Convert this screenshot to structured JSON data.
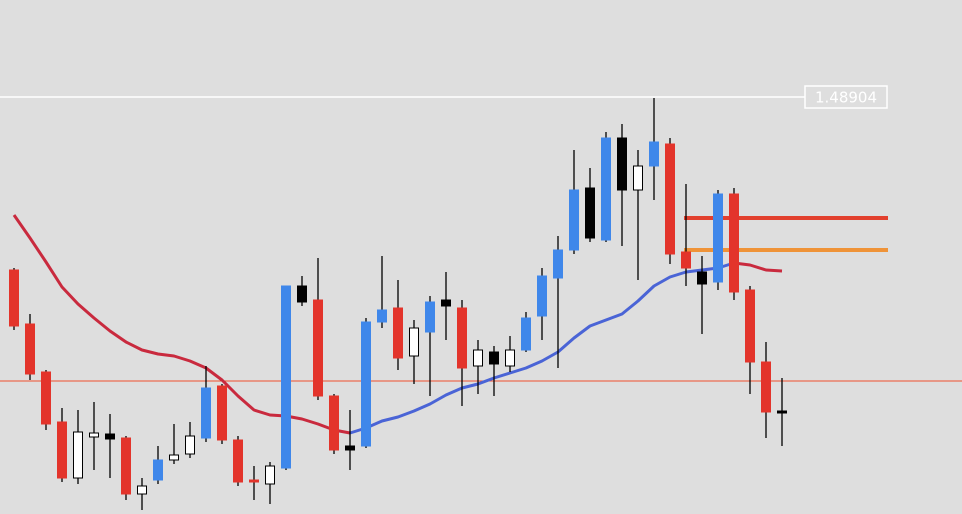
{
  "chart_data": {
    "type": "candlestick",
    "ylim": [
      1.46819,
      1.49389
    ],
    "open": [
      1.48039,
      1.47769,
      1.47529,
      1.47279,
      1.46999,
      1.47204,
      1.47219,
      1.47199,
      1.46919,
      1.46989,
      1.47089,
      1.47119,
      1.47199,
      1.47459,
      1.47189,
      1.46989,
      1.46969,
      1.47049,
      1.47959,
      1.47889,
      1.47409,
      1.47159,
      1.47159,
      1.47779,
      1.47849,
      1.47609,
      1.47729,
      1.47889,
      1.47849,
      1.47559,
      1.47629,
      1.47559,
      1.47639,
      1.47809,
      1.47999,
      1.48139,
      1.48449,
      1.48189,
      1.48699,
      1.48439,
      1.48559,
      1.48669,
      1.48129,
      1.48029,
      1.47979,
      1.48419,
      1.47939,
      1.47579,
      1.47334
    ],
    "high": [
      1.48049,
      1.47819,
      1.47539,
      1.47349,
      1.47339,
      1.47379,
      1.47319,
      1.47209,
      1.46999,
      1.47159,
      1.47269,
      1.47279,
      1.47559,
      1.47469,
      1.47209,
      1.47059,
      1.47079,
      1.47959,
      1.48009,
      1.48099,
      1.47419,
      1.47339,
      1.47799,
      1.48109,
      1.47989,
      1.47789,
      1.47909,
      1.48029,
      1.47889,
      1.47689,
      1.47659,
      1.47709,
      1.47829,
      1.48049,
      1.48209,
      1.48639,
      1.48549,
      1.48729,
      1.48769,
      1.48639,
      1.48899,
      1.48699,
      1.48469,
      1.48109,
      1.48439,
      1.48449,
      1.47959,
      1.47679,
      1.47499
    ],
    "low": [
      1.47739,
      1.47489,
      1.47239,
      1.46979,
      1.46969,
      1.47039,
      1.46999,
      1.46889,
      1.46839,
      1.46969,
      1.47069,
      1.47099,
      1.47179,
      1.47169,
      1.46959,
      1.46889,
      1.46869,
      1.47039,
      1.47859,
      1.47389,
      1.47119,
      1.47039,
      1.47149,
      1.47749,
      1.47539,
      1.47469,
      1.47409,
      1.47689,
      1.47359,
      1.47419,
      1.47409,
      1.47529,
      1.47629,
      1.47689,
      1.47549,
      1.48119,
      1.48179,
      1.48179,
      1.48159,
      1.47989,
      1.48389,
      1.48069,
      1.47959,
      1.47719,
      1.47939,
      1.47889,
      1.47419,
      1.47199,
      1.47159
    ],
    "close": [
      1.47759,
      1.47519,
      1.47269,
      1.46999,
      1.47229,
      1.47224,
      1.47194,
      1.46919,
      1.46959,
      1.47089,
      1.47114,
      1.47209,
      1.47449,
      1.47189,
      1.46979,
      1.46979,
      1.47059,
      1.47959,
      1.47879,
      1.47409,
      1.47139,
      1.47139,
      1.47779,
      1.47839,
      1.47599,
      1.47749,
      1.47879,
      1.47859,
      1.47549,
      1.47639,
      1.47569,
      1.47639,
      1.47799,
      1.48009,
      1.48139,
      1.48439,
      1.48199,
      1.48699,
      1.48439,
      1.48559,
      1.48679,
      1.48119,
      1.48049,
      1.47969,
      1.48419,
      1.47929,
      1.47579,
      1.47329,
      1.47329
    ],
    "candle_colors": [
      "#e3342b",
      "#e3342b",
      "#e3342b",
      "#e3342b",
      "#ffffff",
      "#ffffff",
      "#000000",
      "#e3342b",
      "#ffffff",
      "#3f87ea",
      "#ffffff",
      "#ffffff",
      "#3f87ea",
      "#e3342b",
      "#e3342b",
      "#e3342b",
      "#ffffff",
      "#3f87ea",
      "#000000",
      "#e3342b",
      "#e3342b",
      "#000000",
      "#3f87ea",
      "#3f87ea",
      "#e3342b",
      "#ffffff",
      "#3f87ea",
      "#000000",
      "#e3342b",
      "#ffffff",
      "#000000",
      "#ffffff",
      "#3f87ea",
      "#3f87ea",
      "#3f87ea",
      "#3f87ea",
      "#000000",
      "#3f87ea",
      "#000000",
      "#ffffff",
      "#3f87ea",
      "#e3342b",
      "#e3342b",
      "#000000",
      "#3f87ea",
      "#e3342b",
      "#e3342b",
      "#e3342b",
      "#000000"
    ],
    "series": [
      {
        "color": "#c92a3e",
        "values": [
          1.48314,
          1.48199,
          1.48079,
          1.47954,
          1.47869,
          1.47799,
          1.47734,
          1.47679,
          1.47639,
          1.47619,
          1.47609,
          1.47584,
          1.47549,
          1.47489,
          1.47409,
          1.47339,
          1.47314,
          1.47309,
          1.47294,
          1.47269,
          1.47239,
          1.47224,
          null,
          null,
          null,
          null,
          null,
          null,
          null,
          null,
          null,
          null,
          null,
          null,
          null,
          null,
          null,
          null,
          null,
          null,
          null,
          null,
          null,
          null,
          null,
          1.48074,
          1.48064,
          1.48039,
          1.48034
        ]
      },
      {
        "color": "#4a64d6",
        "values": [
          null,
          null,
          null,
          null,
          null,
          null,
          null,
          null,
          null,
          null,
          null,
          null,
          null,
          null,
          null,
          null,
          null,
          null,
          null,
          null,
          null,
          1.47224,
          1.47249,
          1.47284,
          1.47304,
          1.47334,
          1.47369,
          1.47414,
          1.47449,
          1.47469,
          1.47499,
          1.47524,
          1.47549,
          1.47584,
          1.47629,
          1.47699,
          1.47759,
          1.47789,
          1.47819,
          1.47884,
          1.47959,
          1.48004,
          1.48029,
          1.48039,
          1.48049,
          1.48074,
          null,
          null,
          null
        ]
      }
    ],
    "levels": [
      {
        "value": 1.48904,
        "color": "#ffffff"
      },
      {
        "value": 1.47484,
        "color": "#f0502e"
      },
      {
        "value": 1.48299,
        "color": "#e2402e"
      },
      {
        "value": 1.48139,
        "color": "#ef9338"
      }
    ]
  }
}
